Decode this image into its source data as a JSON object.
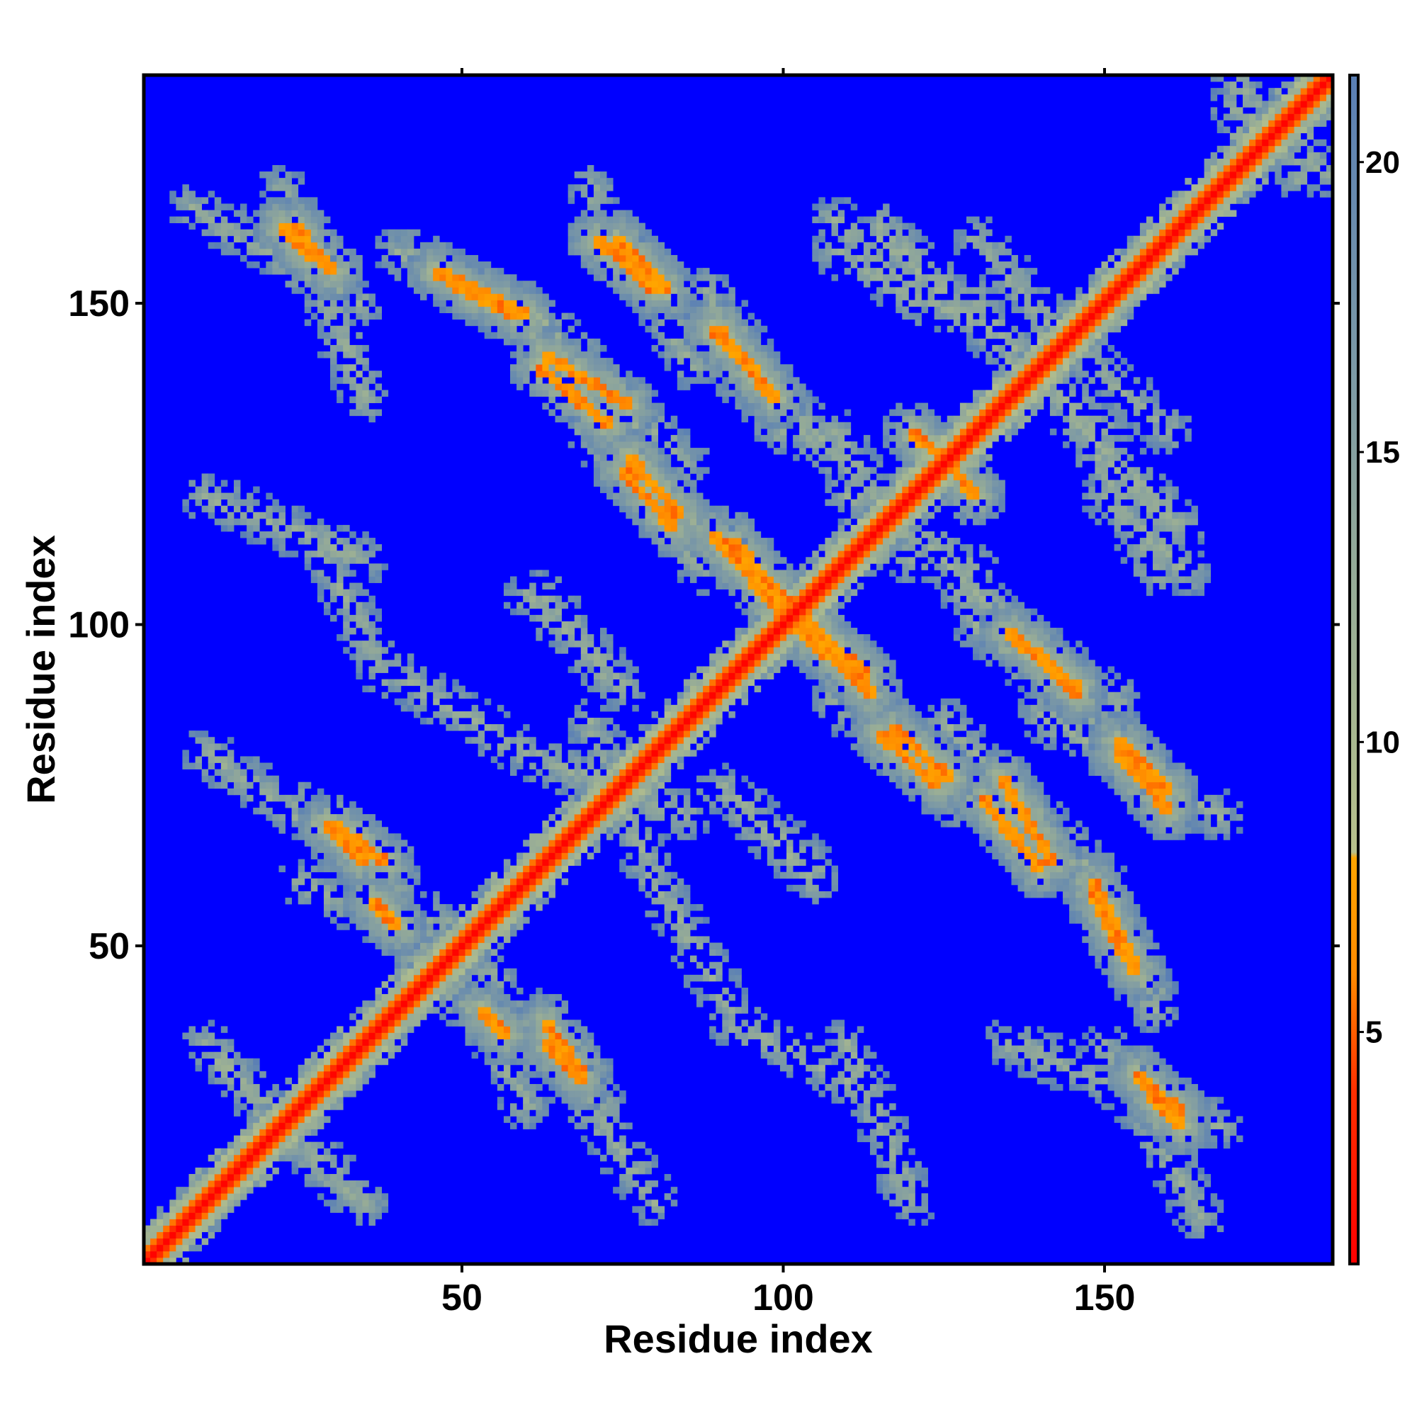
{
  "chart_data": {
    "type": "heatmap",
    "title": "",
    "xlabel": "Residue index",
    "ylabel": "Residue index",
    "n_residues": 185,
    "xlim": [
      1,
      185
    ],
    "ylim": [
      1,
      185
    ],
    "x_ticks": [
      50,
      100,
      150
    ],
    "y_ticks": [
      50,
      100,
      150
    ],
    "colorbar": {
      "min": 1,
      "max": 21.5,
      "ticks": [
        5,
        10,
        15,
        20
      ],
      "stops": [
        {
          "value": 1,
          "color": "#ff0000"
        },
        {
          "value": 4,
          "color": "#ff3000"
        },
        {
          "value": 6,
          "color": "#ff8a00"
        },
        {
          "value": 8,
          "color": "#ffa500"
        },
        {
          "value": 8.1,
          "color": "#b8c08c"
        },
        {
          "value": 10,
          "color": "#a8b890"
        },
        {
          "value": 13,
          "color": "#94aa98"
        },
        {
          "value": 16,
          "color": "#7f9ba4"
        },
        {
          "value": 19,
          "color": "#6a8cad"
        },
        {
          "value": 21.5,
          "color": "#5a7fb5"
        }
      ],
      "background_color": "#0000ff"
    },
    "diagonal_contact_distance": 3.8,
    "contact_segments": [
      {
        "x1": 22,
        "y1": 162,
        "x2": 27,
        "y2": 157
      },
      {
        "x1": 46,
        "y1": 155,
        "x2": 60,
        "y2": 148
      },
      {
        "x1": 74,
        "y1": 160,
        "x2": 82,
        "y2": 152
      },
      {
        "x1": 62,
        "y1": 140,
        "x2": 73,
        "y2": 131
      },
      {
        "x1": 90,
        "y1": 146,
        "x2": 99,
        "y2": 135
      },
      {
        "x1": 75,
        "y1": 124,
        "x2": 83,
        "y2": 115
      },
      {
        "x1": 92,
        "y1": 113,
        "x2": 101,
        "y2": 103
      },
      {
        "x1": 104,
        "y1": 98,
        "x2": 114,
        "y2": 89
      },
      {
        "x1": 117,
        "y1": 84,
        "x2": 126,
        "y2": 76
      },
      {
        "x1": 134,
        "y1": 76,
        "x2": 142,
        "y2": 63
      },
      {
        "x1": 135,
        "y1": 99,
        "x2": 146,
        "y2": 89
      },
      {
        "x1": 152,
        "y1": 80,
        "x2": 160,
        "y2": 71
      },
      {
        "x1": 148,
        "y1": 59,
        "x2": 153,
        "y2": 49
      },
      {
        "x1": 155,
        "y1": 30,
        "x2": 162,
        "y2": 24
      },
      {
        "x1": 63,
        "y1": 38,
        "x2": 69,
        "y2": 30
      },
      {
        "x1": 29,
        "y1": 69,
        "x2": 35,
        "y2": 63
      },
      {
        "x1": 36,
        "y1": 57,
        "x2": 40,
        "y2": 53
      },
      {
        "x1": 124,
        "y1": 127,
        "x2": 130,
        "y2": 120
      },
      {
        "x1": 100,
        "y1": 102,
        "x2": 104,
        "y2": 98
      }
    ],
    "halo_segments": [
      {
        "x1": 8,
        "y1": 165,
        "x2": 34,
        "y2": 150
      },
      {
        "x1": 40,
        "y1": 158,
        "x2": 65,
        "y2": 142
      },
      {
        "x1": 60,
        "y1": 150,
        "x2": 85,
        "y2": 125
      },
      {
        "x1": 88,
        "y1": 152,
        "x2": 105,
        "y2": 128
      },
      {
        "x1": 108,
        "y1": 158,
        "x2": 128,
        "y2": 148
      },
      {
        "x1": 130,
        "y1": 160,
        "x2": 148,
        "y2": 140
      },
      {
        "x1": 10,
        "y1": 120,
        "x2": 35,
        "y2": 110
      },
      {
        "x1": 60,
        "y1": 105,
        "x2": 75,
        "y2": 90
      },
      {
        "x1": 70,
        "y1": 130,
        "x2": 88,
        "y2": 108
      },
      {
        "x1": 108,
        "y1": 130,
        "x2": 120,
        "y2": 110
      },
      {
        "x1": 140,
        "y1": 138,
        "x2": 162,
        "y2": 115
      },
      {
        "x1": 150,
        "y1": 120,
        "x2": 163,
        "y2": 108
      },
      {
        "x1": 125,
        "y1": 110,
        "x2": 140,
        "y2": 95
      },
      {
        "x1": 130,
        "y1": 100,
        "x2": 152,
        "y2": 82
      },
      {
        "x1": 110,
        "y1": 92,
        "x2": 130,
        "y2": 70
      },
      {
        "x1": 140,
        "y1": 86,
        "x2": 168,
        "y2": 70
      },
      {
        "x1": 130,
        "y1": 78,
        "x2": 150,
        "y2": 55
      },
      {
        "x1": 145,
        "y1": 64,
        "x2": 158,
        "y2": 42
      },
      {
        "x1": 135,
        "y1": 35,
        "x2": 168,
        "y2": 22
      },
      {
        "x1": 10,
        "y1": 80,
        "x2": 40,
        "y2": 60
      },
      {
        "x1": 25,
        "y1": 60,
        "x2": 55,
        "y2": 45
      },
      {
        "x1": 45,
        "y1": 45,
        "x2": 72,
        "y2": 25
      },
      {
        "x1": 60,
        "y1": 80,
        "x2": 85,
        "y2": 70
      },
      {
        "x1": 90,
        "y1": 75,
        "x2": 105,
        "y2": 62
      },
      {
        "x1": 80,
        "y1": 60,
        "x2": 92,
        "y2": 40
      },
      {
        "x1": 92,
        "y1": 38,
        "x2": 112,
        "y2": 28
      },
      {
        "x1": 10,
        "y1": 35,
        "x2": 32,
        "y2": 12
      },
      {
        "x1": 115,
        "y1": 160,
        "x2": 150,
        "y2": 130
      },
      {
        "x1": 170,
        "y1": 180,
        "x2": 185,
        "y2": 170
      }
    ]
  }
}
